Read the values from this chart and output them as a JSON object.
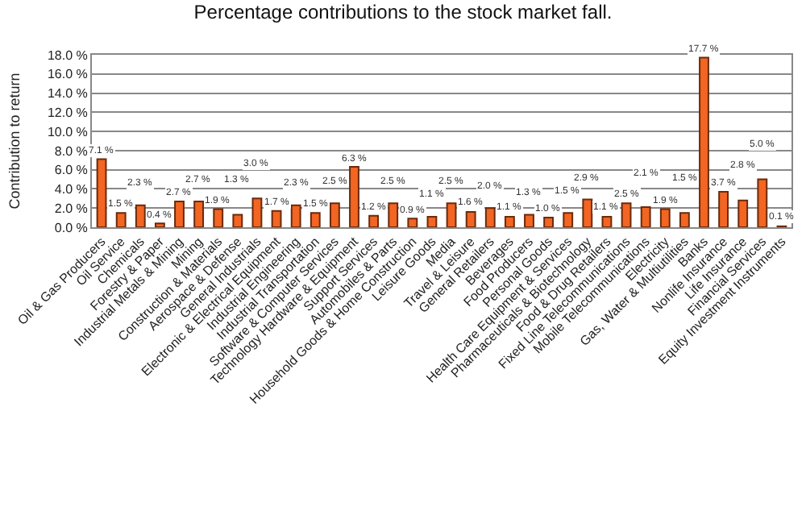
{
  "chart_data": {
    "type": "bar",
    "title": "Percentage contributions to the stock market fall.",
    "ylabel": "Contribution to return",
    "categories": [
      "Oil & Gas Producers",
      "Oil Service",
      "Chemicals",
      "Forestry & Paper",
      "Industrial Metals & Mining",
      "Mining",
      "Construction & Materials",
      "Aerospace & Defense",
      "General Industrials",
      "Electronic & Electrical Equipment",
      "Industrial Engineering",
      "Industrial Transportation",
      "Software & Computer Services",
      "Technology Hardware & Equipment",
      "Support Services",
      "Automobiles & Parts",
      "Household Goods & Home Construction",
      "Leisure Goods",
      "Media",
      "Travel & Leisure",
      "General Retailers",
      "Beverages",
      "Food Producers",
      "Personal Goods",
      "Health Care Equipment & Services",
      "Pharmaceuticals & Biotechnology",
      "Food & Drug Retailers",
      "Fixed Line Telecommunications",
      "Mobile Telecommunications",
      "Electricity",
      "Gas, Water & Multiutilities",
      "Banks",
      "Nonlife Insurance",
      "Life Insurance",
      "Financial Services",
      "Equity Investment Instruments"
    ],
    "values": [
      7.1,
      1.5,
      2.3,
      0.4,
      2.7,
      2.7,
      1.9,
      1.3,
      3.0,
      1.7,
      2.3,
      1.5,
      2.5,
      6.3,
      1.2,
      2.5,
      0.9,
      1.1,
      2.5,
      1.6,
      2.0,
      1.1,
      1.3,
      1.0,
      1.5,
      2.9,
      1.1,
      2.5,
      2.1,
      1.9,
      1.5,
      17.7,
      3.7,
      2.8,
      5.0,
      0.1
    ],
    "value_labels": [
      "7.1 %",
      "1.5 %",
      "2.3 %",
      "0.4 %",
      "2.7 %",
      "2.7 %",
      "1.9 %",
      "1.3 %",
      "3.0 %",
      "1.7 %",
      "2.3 %",
      "1.5 %",
      "2.5 %",
      "6.3 %",
      "1.2 %",
      "2.5 %",
      "0.9 %",
      "1.1 %",
      "2.5 %",
      "1.6 %",
      "2.0 %",
      "1.1 %",
      "1.3 %",
      "1.0 %",
      "1.5 %",
      "2.9 %",
      "1.1 %",
      "2.5 %",
      "2.1 %",
      "1.9 %",
      "1.5 %",
      "17.7 %",
      "3.7 %",
      "2.8 %",
      "5.0 %",
      "0.1 %"
    ],
    "color": "#f26522",
    "ylim": [
      0,
      18
    ],
    "yticks": [
      {
        "value": 0,
        "label": "0.0 %"
      },
      {
        "value": 2,
        "label": "2.0 %"
      },
      {
        "value": 4,
        "label": "4.0 %"
      },
      {
        "value": 6,
        "label": "6.0 %"
      },
      {
        "value": 8,
        "label": "8.0 %"
      },
      {
        "value": 10,
        "label": "10.0 %"
      },
      {
        "value": 12,
        "label": "12.0 %"
      },
      {
        "value": 14,
        "label": "14.0 %"
      },
      {
        "value": 16,
        "label": "16.0 %"
      },
      {
        "value": 18,
        "label": "18.0 %"
      }
    ],
    "grid": "y",
    "legend": false
  }
}
